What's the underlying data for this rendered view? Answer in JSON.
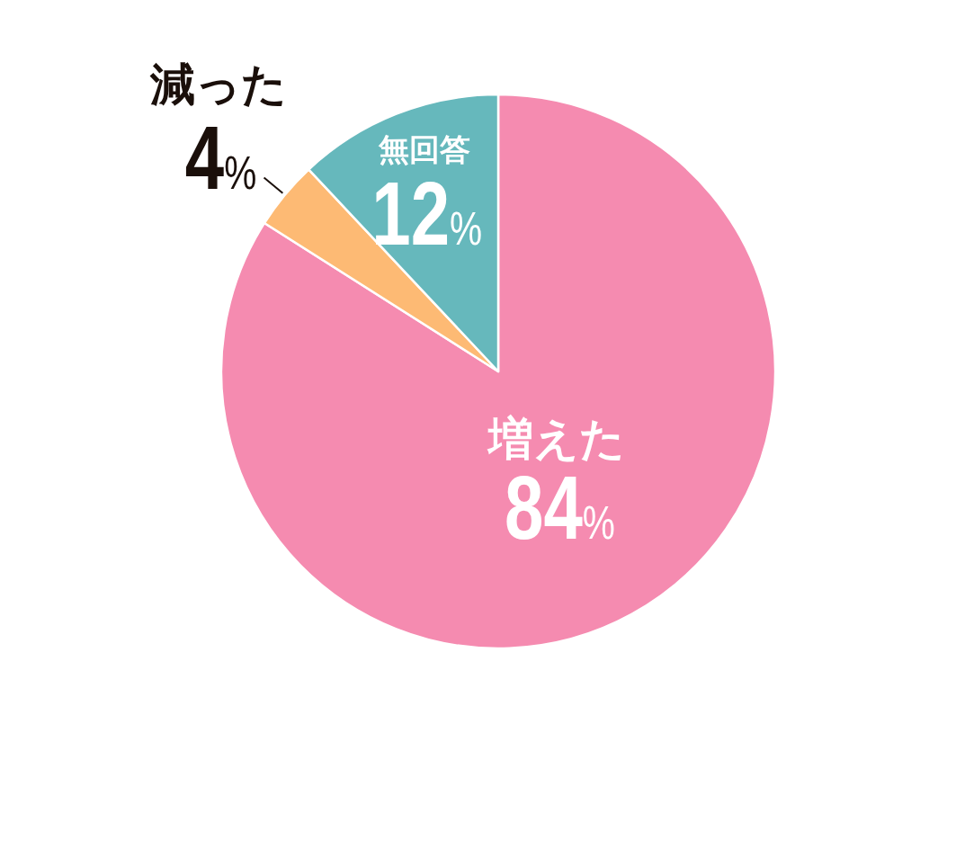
{
  "chart_data": {
    "type": "pie",
    "categories": [
      "増えた",
      "減った",
      "無回答"
    ],
    "values": [
      84,
      4,
      12
    ],
    "value_labels": [
      "84%",
      "4%",
      "12%"
    ],
    "colors": [
      "#f58bb0",
      "#fdba74",
      "#66b8bc"
    ]
  }
}
